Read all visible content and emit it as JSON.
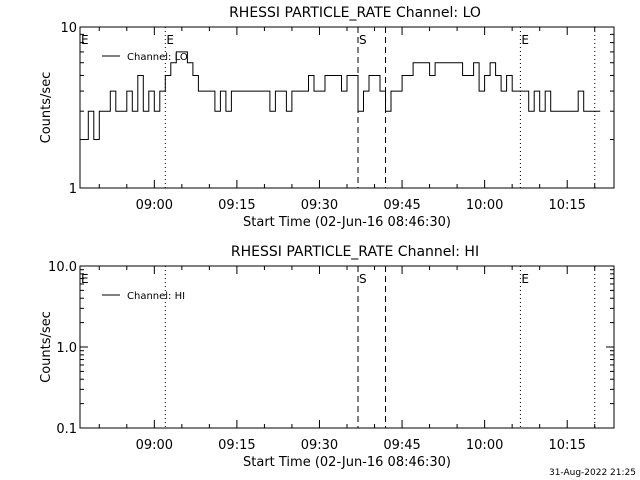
{
  "timestamp": "31-Aug-2022 21:25",
  "chart_data": [
    {
      "id": "lo",
      "type": "line",
      "title": "RHESSI PARTICLE_RATE Channel: LO",
      "xlabel": "Start Time (02-Jun-16 08:46:30)",
      "ylabel": "Counts/sec",
      "yscale": "log",
      "ylim": [
        1,
        10
      ],
      "xlim": [
        "08:46:30",
        "10:23:30"
      ],
      "x_ticks": [
        "09:00",
        "09:15",
        "09:30",
        "09:45",
        "10:00",
        "10:15"
      ],
      "y_ticks": [
        {
          "value": 1,
          "label": "1"
        },
        {
          "value": 10,
          "label": "10"
        }
      ],
      "legend": {
        "position": "top-left",
        "entries": [
          "Channel: LO"
        ]
      },
      "markers": [
        {
          "time": "09:02:00",
          "style": "dotted",
          "label": "E"
        },
        {
          "time": "09:37:00",
          "style": "dashed",
          "label": "S"
        },
        {
          "time": "09:42:00",
          "style": "dashed",
          "label": ""
        },
        {
          "time": "10:06:30",
          "style": "dotted",
          "label": "E"
        },
        {
          "time": "10:20:00",
          "style": "dotted",
          "label": ""
        }
      ],
      "corner_label": "E",
      "series": [
        {
          "name": "Channel: LO",
          "x": [
            "08:47:00",
            "08:48:00",
            "08:49:00",
            "08:50:00",
            "08:51:00",
            "08:52:00",
            "08:53:00",
            "08:54:00",
            "08:55:00",
            "08:56:00",
            "08:57:00",
            "08:58:00",
            "08:59:00",
            "09:00:00",
            "09:01:00",
            "09:02:00",
            "09:03:00",
            "09:04:00",
            "09:05:00",
            "09:06:00",
            "09:07:00",
            "09:08:00",
            "09:09:00",
            "09:10:00",
            "09:11:00",
            "09:12:00",
            "09:13:00",
            "09:14:00",
            "09:15:00",
            "09:16:00",
            "09:17:00",
            "09:18:00",
            "09:19:00",
            "09:20:00",
            "09:21:00",
            "09:22:00",
            "09:23:00",
            "09:24:00",
            "09:25:00",
            "09:26:00",
            "09:27:00",
            "09:28:00",
            "09:29:00",
            "09:30:00",
            "09:31:00",
            "09:32:00",
            "09:33:00",
            "09:34:00",
            "09:35:00",
            "09:36:00",
            "09:37:00",
            "09:38:00",
            "09:39:00",
            "09:40:00",
            "09:41:00",
            "09:42:00",
            "09:43:00",
            "09:44:00",
            "09:45:00",
            "09:46:00",
            "09:47:00",
            "09:48:00",
            "09:49:00",
            "09:50:00",
            "09:51:00",
            "09:52:00",
            "09:53:00",
            "09:54:00",
            "09:55:00",
            "09:56:00",
            "09:57:00",
            "09:58:00",
            "09:59:00",
            "10:00:00",
            "10:01:00",
            "10:02:00",
            "10:03:00",
            "10:04:00",
            "10:05:00",
            "10:06:00",
            "10:07:00",
            "10:08:00",
            "10:09:00",
            "10:10:00",
            "10:11:00",
            "10:12:00",
            "10:13:00",
            "10:14:00",
            "10:15:00",
            "10:16:00",
            "10:17:00",
            "10:18:00",
            "10:19:00",
            "10:20:00"
          ],
          "values": [
            2,
            3,
            2,
            3,
            3,
            4,
            3,
            3,
            4,
            3,
            5,
            3,
            4,
            3,
            4,
            5,
            6,
            7,
            7,
            6,
            5,
            4,
            4,
            4,
            3,
            4,
            3,
            4,
            4,
            4,
            4,
            4,
            4,
            4,
            3,
            4,
            4,
            3,
            4,
            4,
            4,
            5,
            4,
            4,
            5,
            5,
            5,
            4,
            5,
            5,
            3,
            4,
            5,
            5,
            4,
            3,
            4,
            4,
            5,
            5,
            6,
            6,
            6,
            5,
            6,
            6,
            6,
            6,
            6,
            5,
            5,
            6,
            4,
            5,
            6,
            5,
            4,
            5,
            4,
            4,
            4,
            3,
            4,
            3,
            4,
            3,
            3,
            3,
            3,
            3,
            4,
            3,
            3,
            3
          ]
        }
      ]
    },
    {
      "id": "hi",
      "type": "line",
      "title": "RHESSI PARTICLE_RATE Channel: HI",
      "xlabel": "Start Time (02-Jun-16 08:46:30)",
      "ylabel": "Counts/sec",
      "yscale": "log",
      "ylim": [
        0.1,
        10
      ],
      "xlim": [
        "08:46:30",
        "10:23:30"
      ],
      "x_ticks": [
        "09:00",
        "09:15",
        "09:30",
        "09:45",
        "10:00",
        "10:15"
      ],
      "y_ticks": [
        {
          "value": 0.1,
          "label": "0.1"
        },
        {
          "value": 1,
          "label": "1.0"
        },
        {
          "value": 10,
          "label": "10.0"
        }
      ],
      "legend": {
        "position": "top-left",
        "entries": [
          "Channel: HI"
        ]
      },
      "markers": [
        {
          "time": "09:02:00",
          "style": "dotted",
          "label": ""
        },
        {
          "time": "09:37:00",
          "style": "dashed",
          "label": "S"
        },
        {
          "time": "09:42:00",
          "style": "dashed",
          "label": ""
        },
        {
          "time": "10:06:30",
          "style": "dotted",
          "label": "E"
        },
        {
          "time": "10:20:00",
          "style": "dotted",
          "label": ""
        }
      ],
      "corner_label": "E",
      "series": [
        {
          "name": "Channel: HI",
          "x": [],
          "values": []
        }
      ]
    }
  ]
}
